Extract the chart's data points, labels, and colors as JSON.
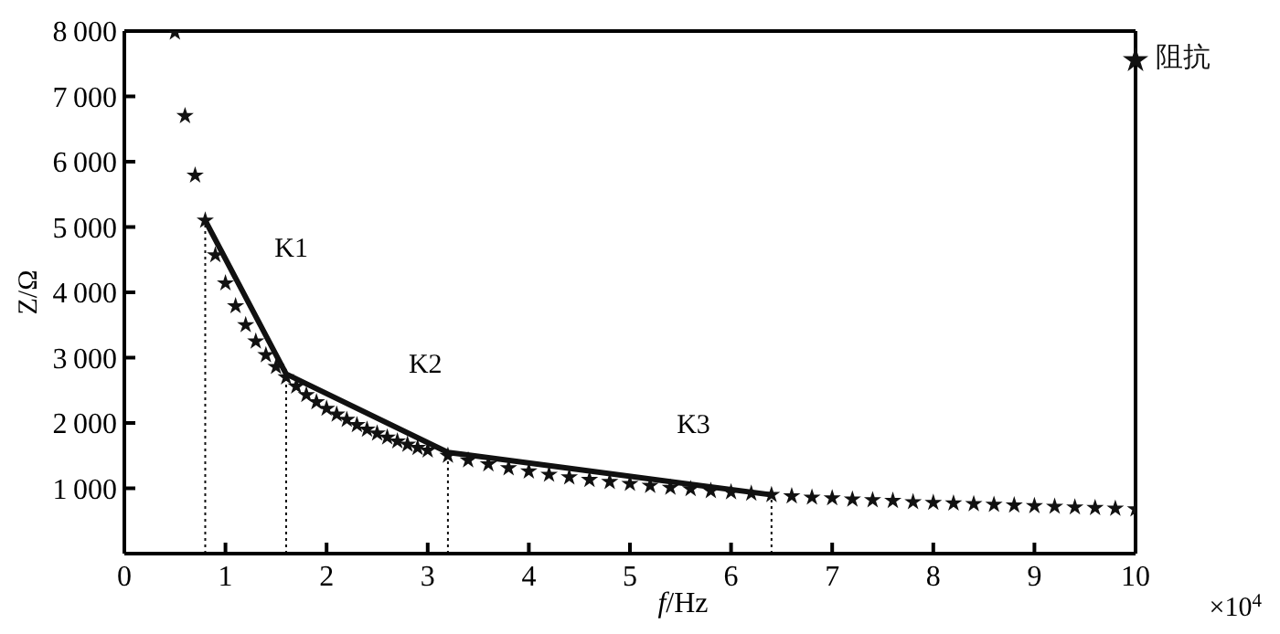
{
  "chart_data": {
    "type": "scatter",
    "xlabel": "f/Hz",
    "ylabel": "Z/Ω",
    "xlim": [
      0,
      10
    ],
    "ylim": [
      0,
      8000
    ],
    "xticks": [
      0,
      1,
      2,
      3,
      4,
      5,
      6,
      7,
      8,
      9,
      10
    ],
    "yticks": [
      {
        "value": 0,
        "label": null
      },
      1000,
      2000,
      3000,
      4000,
      5000,
      6000,
      7000,
      8000
    ],
    "legend": "top right",
    "grid": false,
    "marker": "star",
    "annotations": [
      "K1",
      "K2",
      "K3",
      "×10$^{4}$"
    ],
    "series": [
      {
        "name": "阻抗",
        "color": "#111111",
        "x": [
          0.5,
          0.6,
          0.7,
          0.8,
          0.9,
          1.0,
          1.1,
          1.2,
          1.3,
          1.4,
          1.5,
          1.6,
          1.7,
          1.8,
          1.9,
          2.0,
          2.1,
          2.2,
          2.3,
          2.4,
          2.5,
          2.6,
          2.7,
          2.8,
          2.9,
          3.0,
          3.2,
          3.4,
          3.6,
          3.8,
          4.0,
          4.2,
          4.4,
          4.6,
          4.8,
          5.0,
          5.2,
          5.4,
          5.6,
          5.8,
          6.0,
          6.2,
          6.4,
          6.6,
          6.8,
          7.0,
          7.2,
          7.4,
          7.6,
          7.8,
          8.0,
          8.2,
          8.4,
          8.6,
          8.8,
          9.0,
          9.2,
          9.4,
          9.6,
          9.8,
          10.0
        ],
        "values": [
          7980,
          6700,
          5790,
          5100,
          4570,
          4140,
          3790,
          3500,
          3250,
          3040,
          2860,
          2700,
          2560,
          2430,
          2320,
          2220,
          2130,
          2050,
          1970,
          1900,
          1840,
          1780,
          1720,
          1670,
          1620,
          1580,
          1500,
          1430,
          1370,
          1310,
          1260,
          1210,
          1170,
          1130,
          1100,
          1070,
          1040,
          1010,
          990,
          960,
          940,
          920,
          900,
          880,
          860,
          850,
          830,
          820,
          810,
          790,
          780,
          770,
          760,
          750,
          740,
          730,
          720,
          710,
          700,
          690,
          680
        ]
      },
      {
        "type": "line",
        "color": "#111111",
        "line_style": "solid",
        "marker": "none",
        "x": [
          0.8,
          1.6,
          3.2,
          6.4
        ],
        "values": [
          5100,
          2750,
          1550,
          900
        ]
      },
      {
        "type": "line",
        "color": "#111111",
        "line_style": "dotted",
        "marker": "none",
        "x": [
          0.8,
          0.8
        ],
        "values": [
          0,
          5100
        ]
      },
      {
        "type": "line",
        "color": "#111111",
        "line_style": "dotted",
        "marker": "none",
        "x": [
          1.6,
          1.6
        ],
        "values": [
          0,
          2750
        ]
      },
      {
        "type": "line",
        "color": "#111111",
        "line_style": "dotted",
        "marker": "none",
        "x": [
          3.2,
          3.2
        ],
        "values": [
          0,
          1550
        ]
      },
      {
        "type": "line",
        "color": "#111111",
        "line_style": "dotted",
        "marker": "none",
        "x": [
          6.4,
          6.4
        ],
        "values": [
          0,
          900
        ]
      }
    ]
  }
}
